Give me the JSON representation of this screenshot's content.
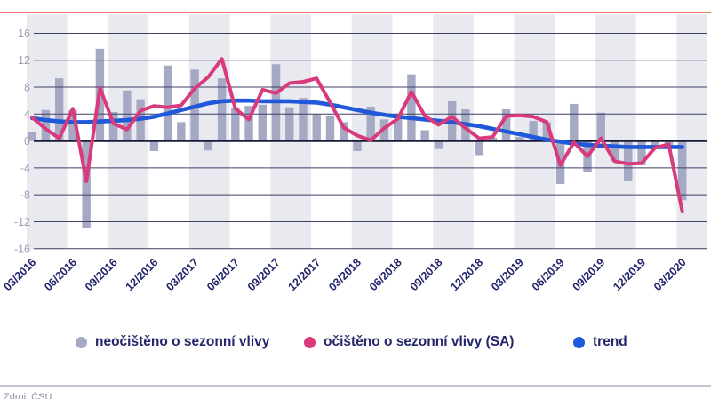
{
  "page": {
    "top_accent_color": "#ee7b69",
    "source_note": "Zdroj: ČSÚ"
  },
  "chart_data": {
    "type": "bar",
    "title": "",
    "xlabel": "",
    "ylabel": "",
    "ylim": [
      -16,
      16
    ],
    "ytick_step": 4,
    "grid": true,
    "x_label_every": 3,
    "legend_position": "bottom",
    "band_colors": [
      "#e9e9f0",
      "#ffffff"
    ],
    "axis_text_color": "#a29cb2",
    "x_label_color": "#23266a",
    "gridline_color": "#3f3f66",
    "zeroline_color": "#1a1a38",
    "categories": [
      "03/2016",
      "04/2016",
      "05/2016",
      "06/2016",
      "07/2016",
      "08/2016",
      "09/2016",
      "10/2016",
      "11/2016",
      "12/2016",
      "01/2017",
      "02/2017",
      "03/2017",
      "04/2017",
      "05/2017",
      "06/2017",
      "07/2017",
      "08/2017",
      "09/2017",
      "10/2017",
      "11/2017",
      "12/2017",
      "01/2018",
      "02/2018",
      "03/2018",
      "04/2018",
      "05/2018",
      "06/2018",
      "07/2018",
      "08/2018",
      "09/2018",
      "10/2018",
      "11/2018",
      "12/2018",
      "01/2019",
      "02/2019",
      "03/2019",
      "04/2019",
      "05/2019",
      "06/2019",
      "07/2019",
      "08/2019",
      "09/2019",
      "10/2019",
      "11/2019",
      "12/2019",
      "01/2020",
      "02/2020",
      "03/2020"
    ],
    "series": [
      {
        "name": "neočištěno o sezonní vlivy",
        "type": "bar",
        "color": "#a6a9c3",
        "values": [
          1.4,
          4.6,
          9.3,
          4.6,
          -13.0,
          13.7,
          4.3,
          7.5,
          6.2,
          -1.5,
          11.2,
          2.8,
          10.6,
          -1.4,
          9.3,
          5.0,
          5.2,
          5.4,
          11.4,
          5.0,
          6.4,
          4.0,
          3.8,
          2.8,
          -1.5,
          5.1,
          3.2,
          3.3,
          9.9,
          1.6,
          -1.2,
          5.9,
          4.7,
          -2.1,
          0.5,
          4.7,
          0.6,
          3.0,
          2.8,
          -6.4,
          5.5,
          -4.6,
          4.2,
          -3.0,
          -6.0,
          -3.6,
          -0.7,
          -0.8,
          -8.8
        ]
      },
      {
        "name": "očištěno o sezonní vlivy (SA)",
        "type": "line",
        "color": "#d93a7c",
        "values": [
          3.5,
          1.8,
          0.4,
          4.8,
          -6.0,
          7.9,
          2.6,
          1.7,
          4.5,
          5.2,
          5.0,
          5.3,
          7.8,
          9.5,
          12.2,
          4.8,
          3.2,
          7.6,
          7.1,
          8.6,
          8.8,
          9.3,
          5.7,
          2.0,
          0.8,
          0.1,
          1.9,
          3.3,
          7.3,
          3.7,
          2.4,
          3.6,
          1.9,
          0.4,
          0.6,
          3.7,
          3.8,
          3.6,
          2.8,
          -3.6,
          -0.2,
          -2.3,
          0.4,
          -3.0,
          -3.4,
          -3.3,
          -1.0,
          -0.5,
          -10.5
        ]
      },
      {
        "name": "trend",
        "type": "line",
        "color": "#1f58d8",
        "values": [
          3.4,
          3.1,
          2.9,
          2.8,
          2.8,
          2.9,
          3.0,
          3.1,
          3.3,
          3.6,
          4.1,
          4.6,
          5.1,
          5.6,
          5.9,
          6.0,
          6.0,
          5.9,
          5.9,
          5.9,
          5.8,
          5.7,
          5.4,
          5.0,
          4.6,
          4.2,
          3.9,
          3.6,
          3.4,
          3.2,
          3.0,
          2.8,
          2.5,
          2.2,
          1.8,
          1.4,
          1.0,
          0.6,
          0.2,
          -0.1,
          -0.4,
          -0.6,
          -0.7,
          -0.8,
          -0.9,
          -0.9,
          -0.9,
          -0.9,
          -0.9
        ]
      }
    ]
  }
}
